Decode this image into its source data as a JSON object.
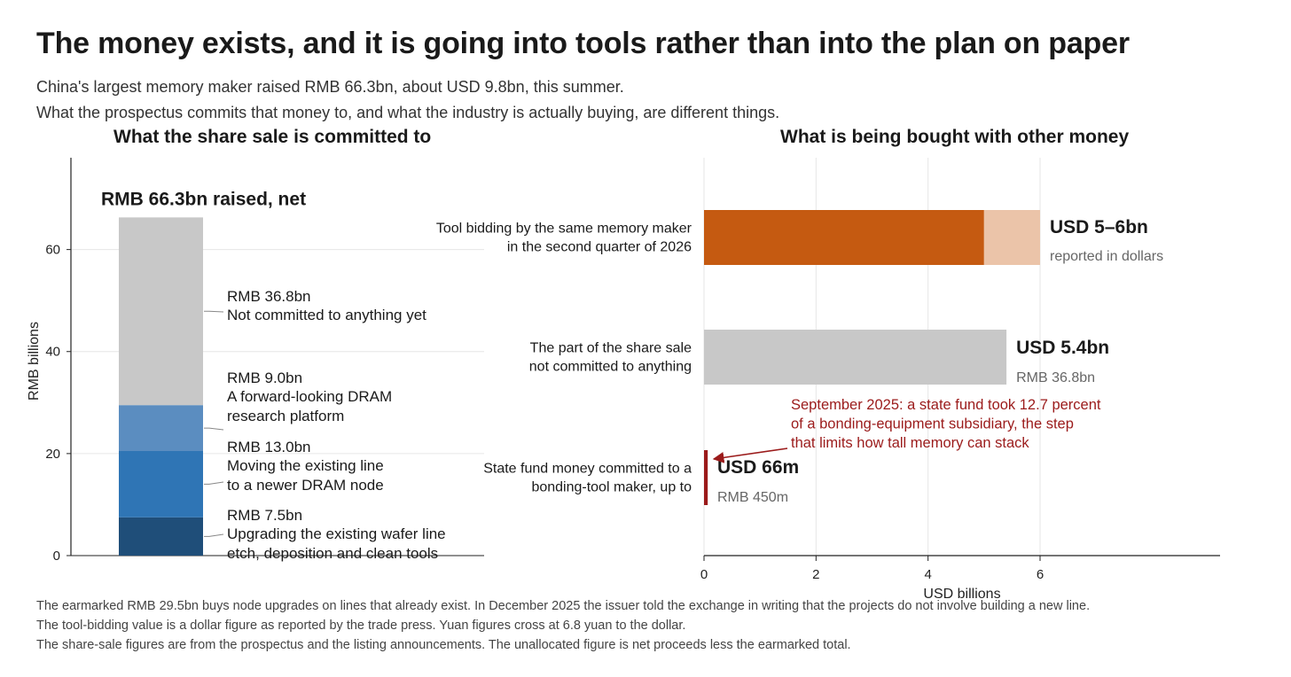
{
  "title": "The money exists, and it is going into tools rather than into the plan on paper",
  "subtitle_lines": [
    "China's largest memory maker raised RMB 66.3bn, about USD 9.8bn, this summer.",
    "What the prospectus commits that money to, and what the industry is actually buying, are different things."
  ],
  "footnotes": [
    "The earmarked RMB 29.5bn buys node upgrades on lines that already exist. In December 2025 the issuer told the exchange in writing that the projects do not involve building a new line.",
    "The tool-bidding value is a dollar figure as reported by the trade press. Yuan figures cross at 6.8 yuan to the dollar.",
    "The share-sale figures are from the prospectus and the listing announcements. The unallocated figure is net proceeds less the earmarked total."
  ],
  "colors": {
    "unallocated": "#c8c8c8",
    "research": "#5b8dc0",
    "node": "#2f75b5",
    "wafer": "#1f4e79",
    "tool_low": "#c55a11",
    "tool_range": "#ebc4a9",
    "state_fund": "#9b1b1b",
    "annotation": "#9b1b1b"
  },
  "chart_data": [
    {
      "type": "bar",
      "orientation": "vertical-stacked",
      "title": "What the share sale is committed to",
      "ylabel": "RMB billions",
      "ylim": [
        0,
        78
      ],
      "yticks": [
        0,
        20,
        40,
        60
      ],
      "grid": true,
      "total_label": "RMB 66.3bn raised, net",
      "total": 66.3,
      "segments": [
        {
          "name": "Upgrading the existing wafer line etch, deposition and clean tools",
          "value_label": "RMB 7.5bn",
          "desc_lines": [
            "Upgrading the existing wafer line",
            "etch, deposition and clean tools"
          ],
          "value": 7.5,
          "color_key": "wafer"
        },
        {
          "name": "Moving the existing line to a newer DRAM node",
          "value_label": "RMB 13.0bn",
          "desc_lines": [
            "Moving the existing line",
            "to a newer DRAM node"
          ],
          "value": 13.0,
          "color_key": "node"
        },
        {
          "name": "A forward-looking DRAM research platform",
          "value_label": "RMB 9.0bn",
          "desc_lines": [
            "A forward-looking DRAM",
            "research platform"
          ],
          "value": 9.0,
          "color_key": "research"
        },
        {
          "name": "Not committed to anything yet",
          "value_label": "RMB 36.8bn",
          "desc_lines": [
            "Not committed to anything yet"
          ],
          "value": 36.8,
          "color_key": "unallocated"
        }
      ]
    },
    {
      "type": "bar",
      "orientation": "horizontal",
      "title": "What is being bought with other money",
      "xlabel": "USD billions",
      "xlim": [
        0,
        9.2
      ],
      "xticks": [
        0,
        2,
        4,
        6
      ],
      "grid": true,
      "bars": [
        {
          "label_lines": [
            "Tool bidding by the same memory maker",
            "in the second quarter of 2026"
          ],
          "value_low": 5,
          "value_high": 6,
          "value_label": "USD 5–6bn",
          "sub_label": "reported in dollars",
          "color_key": "tool_low",
          "range_color_key": "tool_range"
        },
        {
          "label_lines": [
            "The part of the share sale",
            "not committed to anything"
          ],
          "value": 5.4,
          "value_label": "USD 5.4bn",
          "sub_label": "RMB 36.8bn",
          "color_key": "unallocated"
        },
        {
          "label_lines": [
            "State fund money committed to a",
            "bonding-tool maker, up to"
          ],
          "value": 0.066,
          "value_label": "USD 66m",
          "sub_label": "RMB 450m",
          "color_key": "state_fund"
        }
      ],
      "annotation": {
        "lines": [
          "September 2025: a state fund took 12.7 percent",
          "of a bonding-equipment subsidiary, the step",
          "that limits how tall memory can stack"
        ]
      }
    }
  ]
}
